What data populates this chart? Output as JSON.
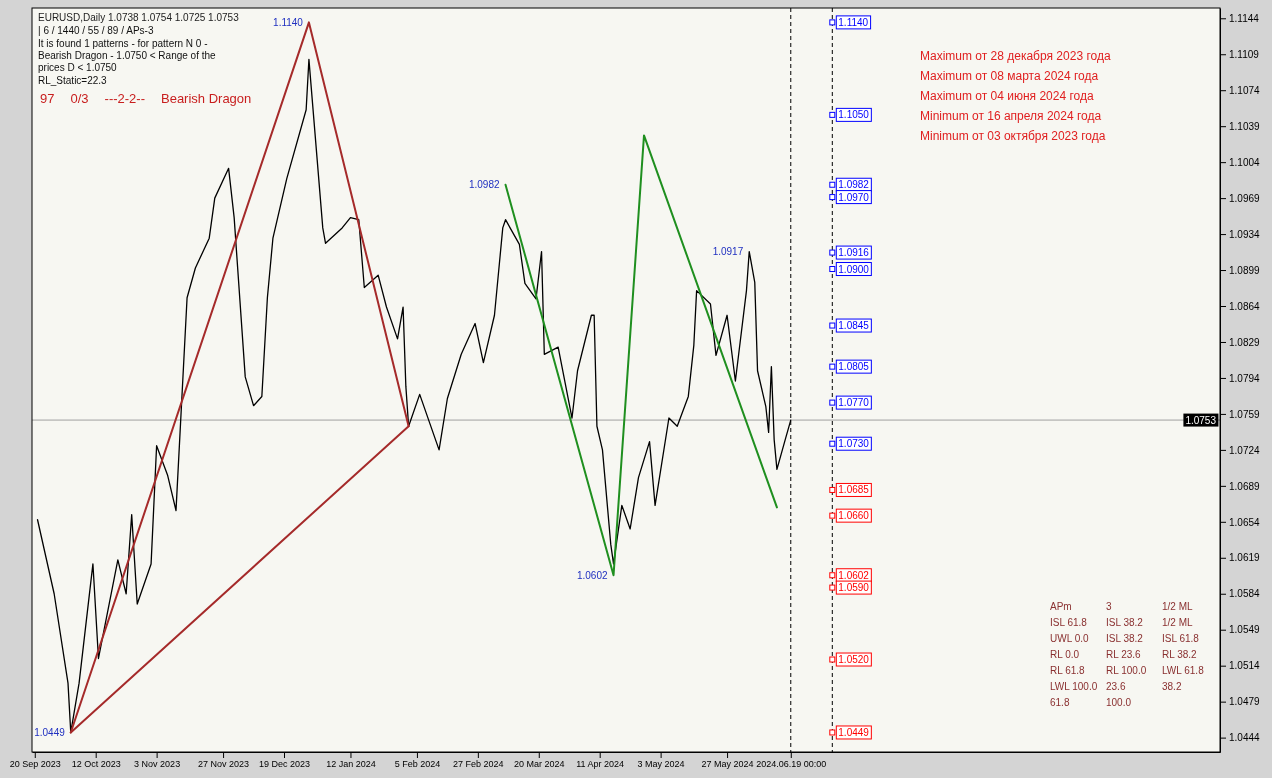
{
  "chart_data": {
    "type": "line",
    "title": "EURUSD,Daily  1.0738 1.0754 1.0725 1.0753",
    "xlim": [
      "2023-09-19",
      "2024-11-21"
    ],
    "ylim": [
      1.043,
      1.1154
    ],
    "xticks": [
      {
        "value": "2023-09-20",
        "label": "20 Sep 2023"
      },
      {
        "value": "2023-10-12",
        "label": "12 Oct 2023"
      },
      {
        "value": "2023-11-03",
        "label": "3 Nov 2023"
      },
      {
        "value": "2023-11-27",
        "label": "27 Nov 2023"
      },
      {
        "value": "2023-12-19",
        "label": "19 Dec 2023"
      },
      {
        "value": "2024-01-12",
        "label": "12 Jan 2024"
      },
      {
        "value": "2024-02-05",
        "label": "5 Feb 2024"
      },
      {
        "value": "2024-02-27",
        "label": "27 Feb 2024"
      },
      {
        "value": "2024-03-20",
        "label": "20 Mar 2024"
      },
      {
        "value": "2024-04-11",
        "label": "11 Apr 2024"
      },
      {
        "value": "2024-05-03",
        "label": "3 May 2024"
      },
      {
        "value": "2024-05-27",
        "label": "27 May 2024"
      },
      {
        "value": "2024-06-19",
        "label": "2024.06.19 00:00"
      }
    ],
    "yticks": [
      1.0444,
      1.0479,
      1.0514,
      1.0549,
      1.0584,
      1.0619,
      1.0654,
      1.0689,
      1.0724,
      1.0759,
      1.0794,
      1.0829,
      1.0864,
      1.0899,
      1.0934,
      1.0969,
      1.1004,
      1.1039,
      1.1074,
      1.1109,
      1.1144
    ],
    "series": [
      {
        "color": "#000000",
        "x": [
          "2023-09-21",
          "2023-09-27",
          "2023-10-02",
          "2023-10-03",
          "2023-10-06",
          "2023-10-11",
          "2023-10-13",
          "2023-10-20",
          "2023-10-23",
          "2023-10-25",
          "2023-10-27",
          "2023-11-01",
          "2023-11-03",
          "2023-11-07",
          "2023-11-10",
          "2023-11-14",
          "2023-11-17",
          "2023-11-22",
          "2023-11-24",
          "2023-11-29",
          "2023-12-01",
          "2023-12-05",
          "2023-12-08",
          "2023-12-11",
          "2023-12-13",
          "2023-12-15",
          "2023-12-20",
          "2023-12-27",
          "2023-12-28",
          "2024-01-02",
          "2024-01-03",
          "2024-01-09",
          "2024-01-12",
          "2024-01-15",
          "2024-01-17",
          "2024-01-22",
          "2024-01-25",
          "2024-01-29",
          "2024-01-31",
          "2024-02-01",
          "2024-02-02",
          "2024-02-06",
          "2024-02-13",
          "2024-02-16",
          "2024-02-21",
          "2024-02-26",
          "2024-02-29",
          "2024-03-04",
          "2024-03-07",
          "2024-03-08",
          "2024-03-13",
          "2024-03-15",
          "2024-03-19",
          "2024-03-21",
          "2024-03-22",
          "2024-03-27",
          "2024-04-01",
          "2024-04-03",
          "2024-04-08",
          "2024-04-09",
          "2024-04-10",
          "2024-04-12",
          "2024-04-15",
          "2024-04-16",
          "2024-04-19",
          "2024-04-22",
          "2024-04-25",
          "2024-04-29",
          "2024-05-01",
          "2024-05-06",
          "2024-05-09",
          "2024-05-13",
          "2024-05-15",
          "2024-05-16",
          "2024-05-21",
          "2024-05-23",
          "2024-05-27",
          "2024-05-30",
          "2024-06-03",
          "2024-06-04",
          "2024-06-06",
          "2024-06-07",
          "2024-06-10",
          "2024-06-11",
          "2024-06-12",
          "2024-06-13",
          "2024-06-14",
          "2024-06-17",
          "2024-06-19"
        ],
        "values": [
          1.0656,
          1.0584,
          1.0497,
          1.0449,
          1.0497,
          1.0613,
          1.0521,
          1.0617,
          1.0584,
          1.0661,
          1.0574,
          1.0613,
          1.0728,
          1.0699,
          1.0665,
          1.0872,
          1.0901,
          1.093,
          1.0969,
          1.0998,
          1.095,
          1.0795,
          1.0767,
          1.0776,
          1.0872,
          1.093,
          1.0988,
          1.1055,
          1.1104,
          1.094,
          1.0925,
          1.094,
          1.095,
          1.0948,
          1.0882,
          1.0894,
          1.0863,
          1.0832,
          1.0863,
          1.0786,
          1.0747,
          1.0778,
          1.0724,
          1.0774,
          1.0817,
          1.0847,
          1.0809,
          1.0855,
          1.094,
          1.0948,
          1.0924,
          1.0886,
          1.0871,
          1.0917,
          1.0817,
          1.0824,
          1.0755,
          1.0801,
          1.0855,
          1.0855,
          1.0747,
          1.0724,
          1.0632,
          1.0613,
          1.067,
          1.0647,
          1.0697,
          1.0732,
          1.067,
          1.0755,
          1.0747,
          1.0776,
          1.0826,
          1.0879,
          1.0866,
          1.0816,
          1.0855,
          1.0791,
          1.0879,
          1.0917,
          1.0887,
          1.0801,
          1.0766,
          1.0741,
          1.0805,
          1.0734,
          1.0705,
          1.0734,
          1.0753
        ]
      },
      {
        "color": "#a52a2a",
        "x": [
          "2023-10-03",
          "2023-12-28",
          "2024-02-02"
        ],
        "values": [
          1.0449,
          1.114,
          1.0747
        ]
      },
      {
        "color": "#a52a2a",
        "x": [
          "2023-10-03",
          "2024-02-02"
        ],
        "values": [
          1.0449,
          1.0747
        ]
      },
      {
        "color": "#1f8f1f",
        "x": [
          "2024-03-08",
          "2024-04-16",
          "2024-04-27",
          "2024-06-14"
        ],
        "values": [
          1.0982,
          1.0602,
          1.103,
          1.0668
        ]
      },
      {
        "type": "scatter",
        "marker": "square",
        "x": [
          "2024-07-04",
          "2024-07-04",
          "2024-07-04",
          "2024-07-04",
          "2024-07-04",
          "2024-07-04",
          "2024-07-04",
          "2024-07-04",
          "2024-07-04",
          "2024-07-04",
          "2024-07-04",
          "2024-07-04",
          "2024-07-04",
          "2024-07-04",
          "2024-07-04",
          "2024-07-04"
        ],
        "values": [
          1.114,
          1.105,
          1.0982,
          1.097,
          1.0916,
          1.09,
          1.0845,
          1.0805,
          1.077,
          1.073,
          1.0685,
          1.066,
          1.0602,
          1.059,
          1.052,
          1.0449
        ],
        "value_labels": [
          "1.1140",
          "1.1050",
          "1.0982",
          "1.0970",
          "1.0916",
          "1.0900",
          "1.0845",
          "1.0805",
          "1.0770",
          "1.0730",
          "1.0685",
          "1.0660",
          "1.0602",
          "1.0590",
          "1.0520",
          "1.0449"
        ],
        "colors": [
          "#0000ff",
          "#0000ff",
          "#0000ff",
          "#0000ff",
          "#0000ff",
          "#0000ff",
          "#0000ff",
          "#0000ff",
          "#0000ff",
          "#0000ff",
          "#ff0000",
          "#ff0000",
          "#ff0000",
          "#ff0000",
          "#ff0000",
          "#ff0000"
        ]
      }
    ],
    "ref_lines": [
      {
        "axis": "y",
        "value": 1.0753,
        "label": "1.0753",
        "color": "#a0a0a0",
        "line_style": "solid"
      },
      {
        "axis": "x",
        "value": "2024-06-19",
        "color": "#000000",
        "line_style": "dashed"
      },
      {
        "axis": "x",
        "value": "2024-07-04",
        "color": "#000000",
        "line_style": "dashed"
      }
    ],
    "annotations": [
      "| 6 / 1440 / 55 / 89 / APs-3",
      "It is found 1 patterns  -  for pattern N 0 - Bearish Dragon - 1.0750 < Range of the prices D < 1.0750",
      "RL_Static=22.3",
      "97",
      "0/3",
      "---2-2--",
      "Bearish Dragon",
      "APm",
      "3",
      "1/2 ML",
      "ISL 61.8",
      "ISL 38.2",
      "1/2 ML",
      "UWL 0.0",
      "ISL 38.2",
      "ISL 61.8",
      "RL 0.0",
      "RL 23.6",
      "RL 38.2",
      "RL 61.8",
      "RL 100.0",
      "LWL 61.8",
      "LWL 100.0",
      "23.6",
      "38.2",
      "61.8",
      "100.0",
      {
        "text": "1.1140",
        "x": "2023-12-28",
        "y": 1.114
      },
      {
        "text": "1.0982",
        "x": "2024-03-08",
        "y": 1.0982
      },
      {
        "text": "1.0602",
        "x": "2024-04-16",
        "y": 1.0602
      },
      {
        "text": "1.0917",
        "x": "2024-06-04",
        "y": 1.0917
      },
      {
        "text": "1.0449",
        "x": "2023-10-03",
        "y": 1.0449
      },
      "Maximum от 28 декабря 2023 года",
      "Maximum от 08 марта 2024 года",
      "Maximum от 04 июня 2024 года",
      "Minimum от 16 апреля 2024 года",
      "Minimum от 03 октября 2023 года"
    ]
  }
}
